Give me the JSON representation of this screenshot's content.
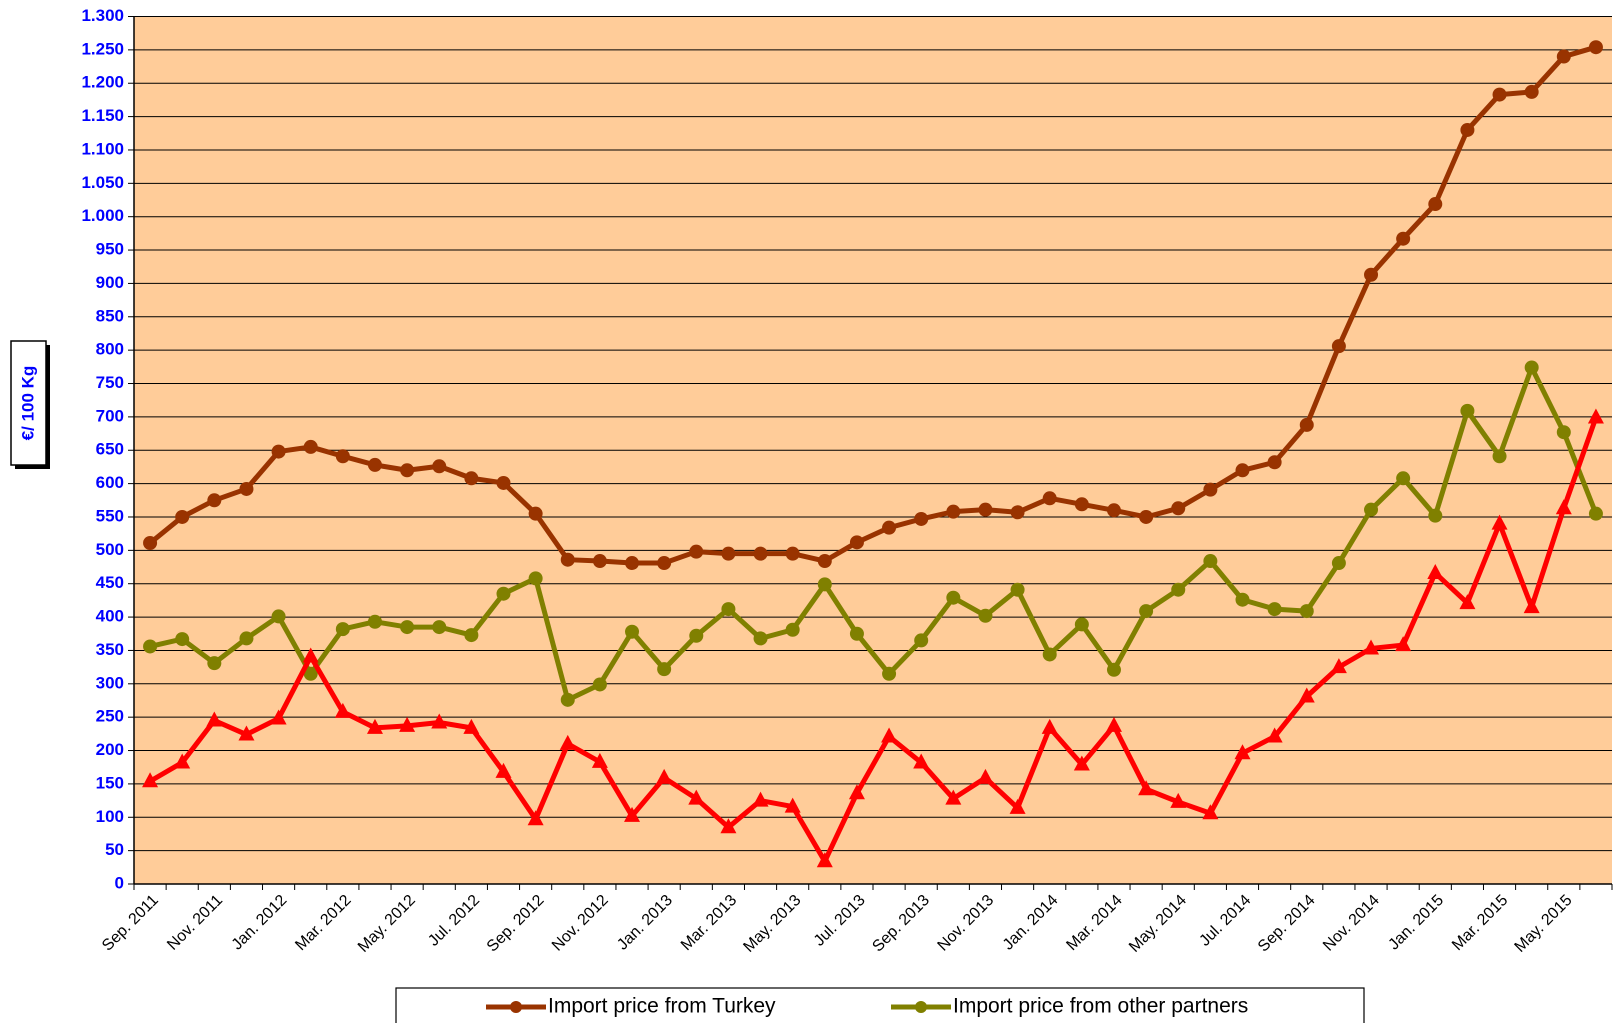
{
  "chart_data": {
    "type": "line",
    "y_label": "€/ 100 Kg",
    "categories": [
      "Sep. 2011",
      null,
      "Nov. 2011",
      null,
      "Jan. 2012",
      null,
      "Mar. 2012",
      null,
      "May. 2012",
      null,
      "Jul. 2012",
      null,
      "Sep. 2012",
      null,
      "Nov. 2012",
      null,
      "Jan. 2013",
      null,
      "Mar. 2013",
      null,
      "May. 2013",
      null,
      "Jul. 2013",
      null,
      "Sep. 2013",
      null,
      "Nov. 2013",
      null,
      "Jan. 2014",
      null,
      "Mar. 2014",
      null,
      "May. 2014",
      null,
      "Jul. 2014",
      null,
      "Sep. 2014",
      null,
      "Nov. 2014",
      null,
      "Jan. 2015",
      null,
      "Mar. 2015",
      null,
      "May. 2015",
      null
    ],
    "series": [
      {
        "name": "Import price from Turkey",
        "color": "#993300",
        "marker": "circle",
        "values": [
          511,
          550,
          575,
          592,
          648,
          655,
          641,
          628,
          620,
          626,
          608,
          601,
          555,
          486,
          484,
          481,
          481,
          498,
          495,
          495,
          495,
          484,
          512,
          534,
          547,
          558,
          561,
          557,
          578,
          569,
          560,
          550,
          563,
          591,
          620,
          632,
          688,
          806,
          913,
          967,
          1019,
          1130,
          1183,
          1187,
          1240,
          1254
        ]
      },
      {
        "name": "Import price from other partners",
        "color": "#808000",
        "marker": "circle",
        "values": [
          356,
          367,
          331,
          368,
          401,
          315,
          382,
          393,
          385,
          385,
          373,
          435,
          458,
          276,
          299,
          378,
          322,
          372,
          412,
          368,
          381,
          449,
          375,
          315,
          365,
          429,
          402,
          441,
          344,
          389,
          321,
          409,
          441,
          484,
          426,
          412,
          409,
          481,
          561,
          608,
          552,
          709,
          641,
          774,
          677,
          555
        ]
      },
      {
        "color": "#ff0000",
        "marker": "triangle",
        "values": [
          154,
          182,
          245,
          224,
          248,
          341,
          258,
          234,
          237,
          242,
          234,
          168,
          97,
          210,
          183,
          102,
          159,
          128,
          85,
          125,
          116,
          34,
          136,
          221,
          182,
          128,
          159,
          114,
          234,
          179,
          237,
          142,
          123,
          106,
          196,
          221,
          281,
          325,
          353,
          358,
          466,
          421,
          540,
          415,
          563,
          699
        ]
      }
    ],
    "ylim": [
      0,
      1300
    ],
    "yticks": [
      0,
      50,
      100,
      150,
      200,
      250,
      300,
      350,
      400,
      450,
      500,
      550,
      600,
      650,
      700,
      750,
      800,
      850,
      900,
      950,
      {
        "value": 1000,
        "label": "1.000"
      },
      {
        "value": 1050,
        "label": "1.050"
      },
      {
        "value": 1100,
        "label": "1.100"
      },
      {
        "value": 1150,
        "label": "1.150"
      },
      {
        "value": 1200,
        "label": "1.200"
      },
      {
        "value": 1250,
        "label": "1.250"
      },
      {
        "value": 1300,
        "label": "1.300"
      }
    ],
    "grid": true,
    "background": "#ffcc99"
  }
}
